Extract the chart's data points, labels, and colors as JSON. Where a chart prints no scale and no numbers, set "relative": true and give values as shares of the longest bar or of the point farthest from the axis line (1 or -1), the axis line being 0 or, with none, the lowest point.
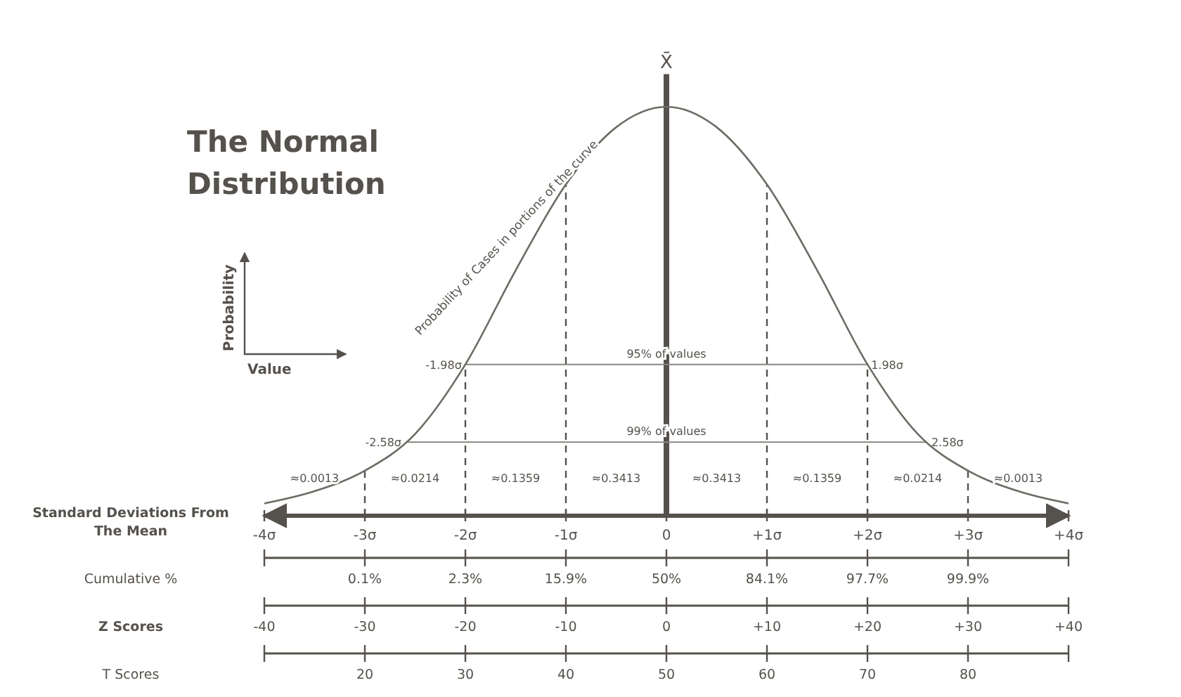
{
  "chart_data": {
    "type": "line",
    "title": "The Normal Distribution",
    "xlabel": "Standard Deviations From The Mean",
    "relative": true,
    "color": "#6e6a64",
    "x": [
      -4,
      -3.5,
      -3,
      -2.5,
      -2,
      -1.5,
      -1,
      -0.5,
      0,
      0.5,
      1,
      1.5,
      2,
      2.5,
      3,
      3.5,
      4
    ],
    "values": [
      0.03,
      0.06,
      0.11,
      0.2,
      0.37,
      0.6,
      0.81,
      0.95,
      1,
      0.95,
      0.81,
      0.6,
      0.37,
      0.2,
      0.11,
      0.06,
      0.03
    ],
    "xlim": [
      -4,
      4
    ],
    "xticks": [
      {
        "value": -4,
        "label": "-4σ"
      },
      {
        "value": -3,
        "label": "-3σ"
      },
      {
        "value": -2,
        "label": "-2σ"
      },
      {
        "value": -1,
        "label": "-1σ"
      },
      0,
      {
        "value": 1,
        "label": "+1σ"
      },
      {
        "value": 2,
        "label": "+2σ"
      },
      {
        "value": 3,
        "label": "+3σ"
      },
      {
        "value": 4,
        "label": "+4σ"
      }
    ],
    "x2label": "Z Scores",
    "x2lim": [
      -40,
      40
    ],
    "x2ticks": [
      -40,
      -30,
      -20,
      -10,
      0,
      {
        "value": 10,
        "label": "+10"
      },
      {
        "value": 20,
        "label": "+20"
      },
      {
        "value": 30,
        "label": "+30"
      },
      {
        "value": 40,
        "label": "+40"
      }
    ],
    "ref_lines": [
      {
        "axis": "x",
        "value": 0,
        "label": "X̄",
        "line_style": "solid"
      },
      {
        "axis": "x",
        "value": -3,
        "line_style": "dashed"
      },
      {
        "axis": "x",
        "value": -2,
        "line_style": "dashed"
      },
      {
        "axis": "x",
        "value": -1,
        "line_style": "dashed"
      },
      {
        "axis": "x",
        "value": 1,
        "line_style": "dashed"
      },
      {
        "axis": "x",
        "value": 2,
        "line_style": "dashed"
      },
      {
        "axis": "x",
        "value": 3,
        "line_style": "dashed"
      },
      {
        "axis": "y",
        "value": 0.37,
        "label": "95% of values",
        "line_style": "solid"
      },
      {
        "axis": "y",
        "value": 0.18,
        "label": "99% of values",
        "line_style": "solid"
      }
    ],
    "annotations": [
      "Probability of Cases in portions of the curve",
      "Probability",
      "Value",
      {
        "text": "-1.98σ",
        "x": -1.98,
        "y": 0.37
      },
      {
        "text": "1.98σ",
        "x": 1.98,
        "y": 0.37
      },
      {
        "text": "-2.58σ",
        "x": -2.58,
        "y": 0.18
      },
      {
        "text": "2.58σ",
        "x": 2.58,
        "y": 0.18
      },
      "≈0.0013",
      "≈0.0214",
      "≈0.1359",
      "≈0.3413",
      "≈0.3413",
      "≈0.1359",
      "≈0.0214",
      "≈0.0013",
      "Cumulative %",
      "0.1%",
      "2.3%",
      "15.9%",
      "50%",
      "84.1%",
      "97.7%",
      "99.9%",
      "T Scores",
      "20",
      "30",
      "40",
      "50",
      "60",
      "70",
      "80"
    ]
  }
}
